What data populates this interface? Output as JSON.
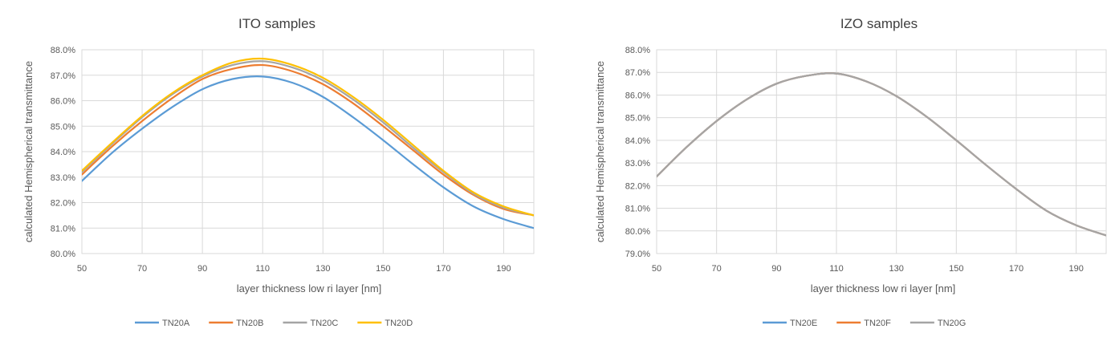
{
  "chart_data": [
    {
      "type": "line",
      "title": "ITO samples",
      "xlabel": "layer thickness low ri layer [nm]",
      "ylabel": "calculated Hemispherical transmittance",
      "xlim": [
        50,
        200
      ],
      "ylim": [
        80.0,
        88.0
      ],
      "xticks": [
        50,
        70,
        90,
        110,
        130,
        150,
        170,
        190
      ],
      "xtick_labels": [
        "50",
        "70",
        "90",
        "110",
        "130",
        "150",
        "170",
        "190"
      ],
      "yticks": [
        80,
        81,
        82,
        83,
        84,
        85,
        86,
        87,
        88
      ],
      "ytick_labels": [
        "80.0%",
        "81.0%",
        "82.0%",
        "83.0%",
        "84.0%",
        "85.0%",
        "86.0%",
        "87.0%",
        "88.0%"
      ],
      "grid": true,
      "legend": "bottom",
      "x": [
        50,
        60,
        70,
        80,
        90,
        100,
        110,
        120,
        130,
        140,
        150,
        160,
        170,
        180,
        190,
        200
      ],
      "series": [
        {
          "name": "TN20A",
          "color": "#5b9bd5",
          "values": [
            82.85,
            83.95,
            84.9,
            85.75,
            86.45,
            86.85,
            86.95,
            86.7,
            86.15,
            85.35,
            84.45,
            83.5,
            82.6,
            81.85,
            81.35,
            81.0
          ]
        },
        {
          "name": "TN20B",
          "color": "#ed7d31",
          "values": [
            83.1,
            84.2,
            85.2,
            86.1,
            86.85,
            87.25,
            87.4,
            87.15,
            86.65,
            85.9,
            85.0,
            84.05,
            83.1,
            82.3,
            81.75,
            81.5
          ]
        },
        {
          "name": "TN20C",
          "color": "#a5a5a5",
          "values": [
            83.2,
            84.3,
            85.35,
            86.25,
            86.95,
            87.4,
            87.55,
            87.3,
            86.8,
            86.05,
            85.15,
            84.15,
            83.2,
            82.35,
            81.8,
            81.5
          ]
        },
        {
          "name": "TN20D",
          "color": "#ffc000",
          "values": [
            83.25,
            84.35,
            85.4,
            86.3,
            87.0,
            87.5,
            87.65,
            87.4,
            86.9,
            86.15,
            85.25,
            84.25,
            83.25,
            82.4,
            81.85,
            81.5
          ]
        }
      ]
    },
    {
      "type": "line",
      "title": "IZO samples",
      "xlabel": "layer thickness low ri layer [nm]",
      "ylabel": "calculated Hemispherical transmittance",
      "xlim": [
        50,
        200
      ],
      "ylim": [
        79.0,
        88.0
      ],
      "xticks": [
        50,
        70,
        90,
        110,
        130,
        150,
        170,
        190
      ],
      "xtick_labels": [
        "50",
        "70",
        "90",
        "110",
        "130",
        "150",
        "170",
        "190"
      ],
      "yticks": [
        79,
        80,
        81,
        82,
        83,
        84,
        85,
        86,
        87,
        88
      ],
      "ytick_labels": [
        "79.0%",
        "80.0%",
        "81.0%",
        "82.0%",
        "83.0%",
        "84.0%",
        "85.0%",
        "86.0%",
        "87.0%",
        "88.0%"
      ],
      "grid": true,
      "legend": "bottom",
      "x": [
        50,
        60,
        70,
        80,
        90,
        100,
        110,
        120,
        130,
        140,
        150,
        160,
        170,
        180,
        190,
        200
      ],
      "series": [
        {
          "name": "TN20E",
          "color": "#5b9bd5",
          "values": [
            82.4,
            83.7,
            84.85,
            85.8,
            86.5,
            86.85,
            86.95,
            86.6,
            85.95,
            85.05,
            84.0,
            82.9,
            81.85,
            80.9,
            80.25,
            79.8
          ]
        },
        {
          "name": "TN20F",
          "color": "#ed7d31",
          "values": [
            82.4,
            83.7,
            84.85,
            85.8,
            86.5,
            86.85,
            86.95,
            86.6,
            85.95,
            85.05,
            84.0,
            82.9,
            81.85,
            80.9,
            80.25,
            79.8
          ]
        },
        {
          "name": "TN20G",
          "color": "#a5a5a5",
          "values": [
            82.4,
            83.7,
            84.85,
            85.8,
            86.5,
            86.85,
            86.95,
            86.6,
            85.95,
            85.05,
            84.0,
            82.9,
            81.85,
            80.9,
            80.25,
            79.8
          ]
        }
      ]
    }
  ]
}
